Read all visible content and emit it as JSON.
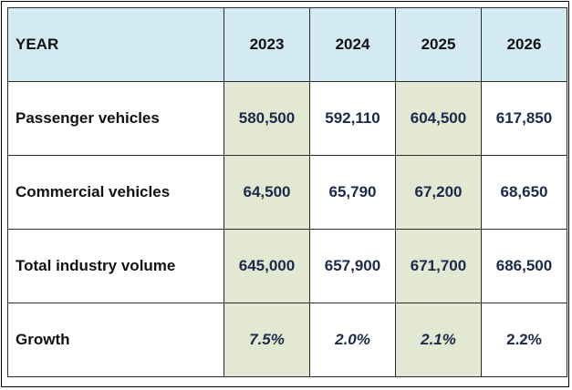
{
  "chart_data": {
    "type": "table",
    "columns": [
      "YEAR",
      "2023",
      "2024",
      "2025",
      "2026"
    ],
    "rows": [
      {
        "label": "Passenger vehicles",
        "values": [
          "580,500",
          "592,110",
          "604,500",
          "617,850"
        ]
      },
      {
        "label": "Commercial vehicles",
        "values": [
          "64,500",
          "65,790",
          "67,200",
          "68,650"
        ]
      },
      {
        "label": "Total industry volume",
        "values": [
          "645,000",
          "657,900",
          "671,700",
          "686,500"
        ]
      },
      {
        "label": "Growth",
        "values": [
          "7.5%",
          "2.0%",
          "2.1%",
          "2.2%"
        ]
      }
    ]
  },
  "colors": {
    "header_bg": "#d4eaf2",
    "highlight_bg": "#e2e8d2",
    "value_text": "#1b2a4a",
    "border": "#2a2a2a"
  }
}
